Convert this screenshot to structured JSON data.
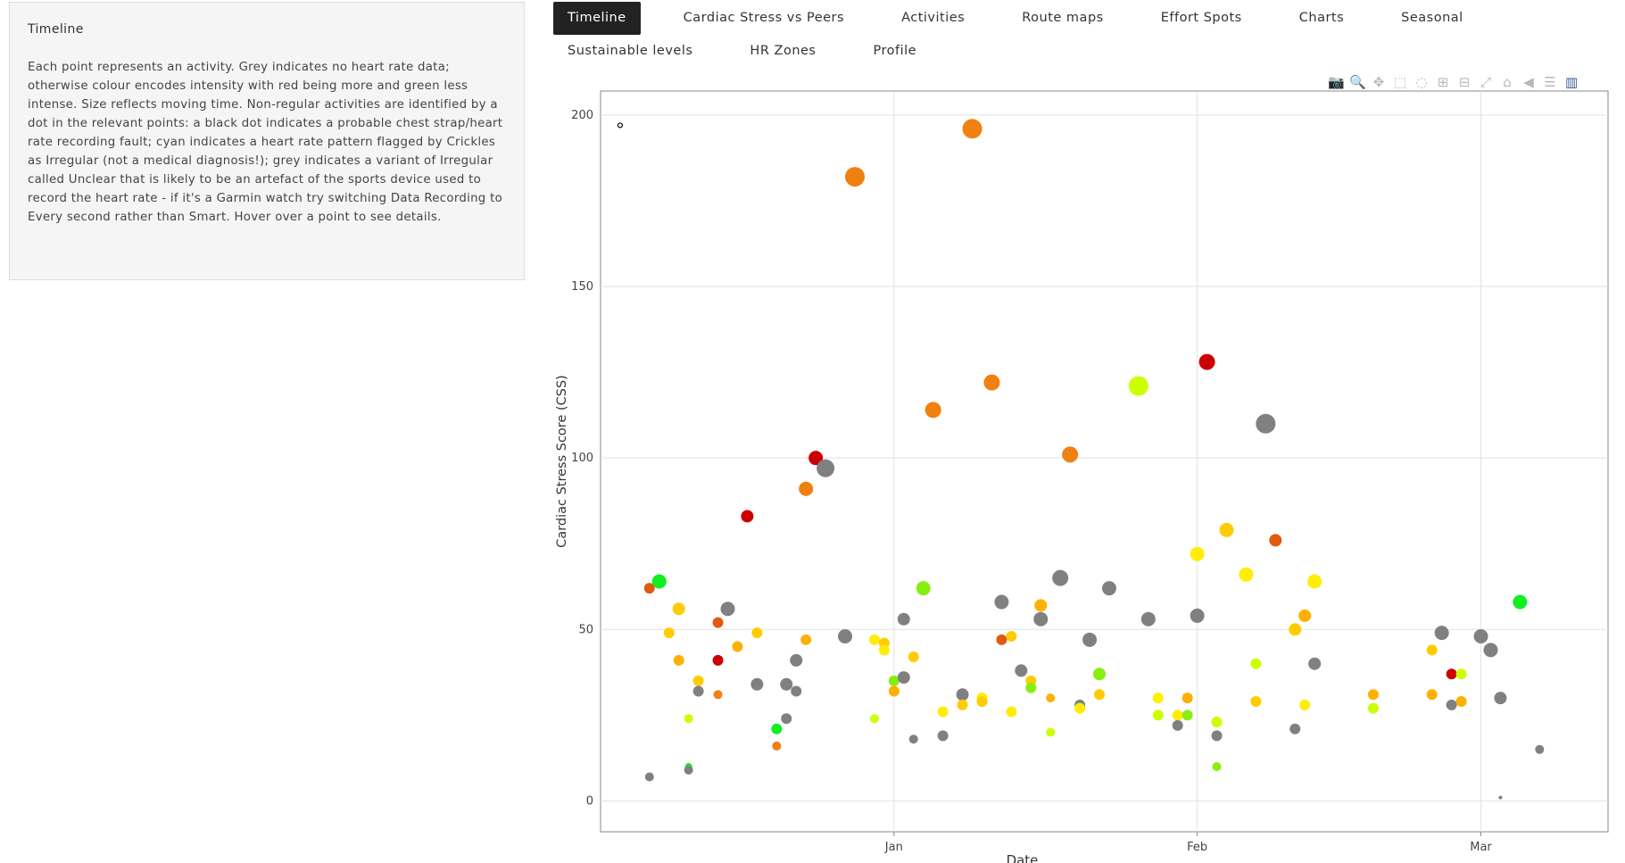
{
  "info": {
    "title": "Timeline",
    "text": "Each point represents an activity. Grey indicates no heart rate data; otherwise colour encodes intensity with red being more and green less intense. Size reflects moving time. Non-regular activities are identified by a dot in the relevant points: a black dot indicates a probable chest strap/heart rate recording fault; cyan indicates a heart rate pattern flagged by Crickles as Irregular (not a medical diagnosis!); grey indicates a variant of Irregular called Unclear that is likely to be an artefact of the sports device used to record the heart rate - if it's a Garmin watch try switching Data Recording to Every second rather than Smart. Hover over a point to see details."
  },
  "tabs": [
    {
      "label": "Timeline",
      "active": true
    },
    {
      "label": "Cardiac Stress vs Peers"
    },
    {
      "label": "Activities"
    },
    {
      "label": "Route maps"
    },
    {
      "label": "Effort Spots"
    },
    {
      "label": "Charts"
    },
    {
      "label": "Seasonal"
    },
    {
      "label": "Sustainable levels"
    },
    {
      "label": "HR Zones"
    },
    {
      "label": "Profile"
    }
  ],
  "modebar": [
    {
      "icon": "camera-icon",
      "glyph": "📷"
    },
    {
      "icon": "zoom-icon",
      "glyph": "🔍",
      "style": "hl"
    },
    {
      "icon": "pan-icon",
      "glyph": "✥"
    },
    {
      "icon": "box-select-icon",
      "glyph": "⬚"
    },
    {
      "icon": "lasso-select-icon",
      "glyph": "◌"
    },
    {
      "icon": "zoom-in-icon",
      "glyph": "⊞"
    },
    {
      "icon": "zoom-out-icon",
      "glyph": "⊟"
    },
    {
      "icon": "autoscale-icon",
      "glyph": "⤢"
    },
    {
      "icon": "reset-axes-icon",
      "glyph": "⌂"
    },
    {
      "icon": "spike-lines-icon",
      "glyph": "◀"
    },
    {
      "icon": "compare-data-icon",
      "glyph": "☰"
    },
    {
      "icon": "plotly-logo-icon",
      "glyph": "▥",
      "style": "on"
    }
  ],
  "chart_data": {
    "type": "scatter",
    "xlabel": "Date",
    "ylabel": "Cardiac Stress Score (CSS)",
    "ylim": [
      -9,
      207
    ],
    "xlim": [
      "2023-12-02",
      "2024-03-14"
    ],
    "xticks": [
      {
        "date": "2024-01-01",
        "label": "Jan"
      },
      {
        "date": "2024-02-01",
        "label": "Feb"
      },
      {
        "date": "2024-03-01",
        "label": "Mar"
      }
    ],
    "yticks": [
      0,
      50,
      100,
      150,
      200
    ],
    "grid": true,
    "colors": {
      "grey": "#808080",
      "red": "#cc0000",
      "red_orange": "#e05a10",
      "orange": "#f08010",
      "amber": "#ffb000",
      "yellow_orange": "#ffcc00",
      "yellow": "#ffee00",
      "yellow_green": "#ccff00",
      "lime": "#88ee11",
      "green": "#11ee22"
    },
    "points": [
      {
        "date": "2023-12-04",
        "y": 197,
        "c": "none",
        "r": 2,
        "flag": "chest-strap-fault"
      },
      {
        "date": "2023-12-07",
        "y": 62,
        "c": "red_orange",
        "r": 6
      },
      {
        "date": "2023-12-07",
        "y": 7,
        "c": "grey",
        "r": 5
      },
      {
        "date": "2023-12-08",
        "y": 64,
        "c": "green",
        "r": 8
      },
      {
        "date": "2023-12-09",
        "y": 49,
        "c": "yellow_orange",
        "r": 6
      },
      {
        "date": "2023-12-10",
        "y": 56,
        "c": "yellow_orange",
        "r": 7
      },
      {
        "date": "2023-12-10",
        "y": 41,
        "c": "amber",
        "r": 6
      },
      {
        "date": "2023-12-11",
        "y": 24,
        "c": "yellow_green",
        "r": 5
      },
      {
        "date": "2023-12-11",
        "y": 10,
        "c": "green",
        "r": 4
      },
      {
        "date": "2023-12-11",
        "y": 9,
        "c": "grey",
        "r": 5
      },
      {
        "date": "2023-12-12",
        "y": 35,
        "c": "yellow_orange",
        "r": 6
      },
      {
        "date": "2023-12-12",
        "y": 32,
        "c": "grey",
        "r": 6
      },
      {
        "date": "2023-12-14",
        "y": 52,
        "c": "red_orange",
        "r": 6
      },
      {
        "date": "2023-12-14",
        "y": 41,
        "c": "red",
        "r": 6
      },
      {
        "date": "2023-12-14",
        "y": 31,
        "c": "orange",
        "r": 5
      },
      {
        "date": "2023-12-15",
        "y": 56,
        "c": "grey",
        "r": 8
      },
      {
        "date": "2023-12-16",
        "y": 45,
        "c": "amber",
        "r": 6
      },
      {
        "date": "2023-12-17",
        "y": 83,
        "c": "red",
        "r": 7
      },
      {
        "date": "2023-12-18",
        "y": 49,
        "c": "yellow_orange",
        "r": 6
      },
      {
        "date": "2023-12-18",
        "y": 34,
        "c": "grey",
        "r": 7
      },
      {
        "date": "2023-12-20",
        "y": 21,
        "c": "green",
        "r": 6
      },
      {
        "date": "2023-12-20",
        "y": 16,
        "c": "orange",
        "r": 5
      },
      {
        "date": "2023-12-21",
        "y": 34,
        "c": "grey",
        "r": 7
      },
      {
        "date": "2023-12-21",
        "y": 24,
        "c": "grey",
        "r": 6
      },
      {
        "date": "2023-12-22",
        "y": 41,
        "c": "grey",
        "r": 7
      },
      {
        "date": "2023-12-22",
        "y": 32,
        "c": "grey",
        "r": 6
      },
      {
        "date": "2023-12-23",
        "y": 91,
        "c": "orange",
        "r": 8
      },
      {
        "date": "2023-12-23",
        "y": 47,
        "c": "amber",
        "r": 6
      },
      {
        "date": "2023-12-24",
        "y": 100,
        "c": "red",
        "r": 8
      },
      {
        "date": "2023-12-25",
        "y": 97,
        "c": "grey",
        "r": 10
      },
      {
        "date": "2023-12-27",
        "y": 48,
        "c": "grey",
        "r": 8
      },
      {
        "date": "2023-12-28",
        "y": 182,
        "c": "orange",
        "r": 11
      },
      {
        "date": "2023-12-30",
        "y": 47,
        "c": "yellow",
        "r": 6
      },
      {
        "date": "2023-12-30",
        "y": 24,
        "c": "yellow_green",
        "r": 5
      },
      {
        "date": "2023-12-31",
        "y": 46,
        "c": "yellow_orange",
        "r": 6
      },
      {
        "date": "2023-12-31",
        "y": 44,
        "c": "yellow",
        "r": 6
      },
      {
        "date": "2024-01-01",
        "y": 35,
        "c": "lime",
        "r": 6
      },
      {
        "date": "2024-01-01",
        "y": 32,
        "c": "amber",
        "r": 6
      },
      {
        "date": "2024-01-02",
        "y": 53,
        "c": "grey",
        "r": 7
      },
      {
        "date": "2024-01-02",
        "y": 36,
        "c": "grey",
        "r": 7
      },
      {
        "date": "2024-01-03",
        "y": 42,
        "c": "yellow_orange",
        "r": 6
      },
      {
        "date": "2024-01-03",
        "y": 18,
        "c": "grey",
        "r": 5
      },
      {
        "date": "2024-01-04",
        "y": 62,
        "c": "lime",
        "r": 8
      },
      {
        "date": "2024-01-05",
        "y": 114,
        "c": "orange",
        "r": 9
      },
      {
        "date": "2024-01-06",
        "y": 26,
        "c": "yellow",
        "r": 6
      },
      {
        "date": "2024-01-06",
        "y": 19,
        "c": "grey",
        "r": 6
      },
      {
        "date": "2024-01-08",
        "y": 31,
        "c": "grey",
        "r": 7
      },
      {
        "date": "2024-01-08",
        "y": 28,
        "c": "yellow_orange",
        "r": 6
      },
      {
        "date": "2024-01-09",
        "y": 196,
        "c": "orange",
        "r": 11
      },
      {
        "date": "2024-01-10",
        "y": 30,
        "c": "yellow",
        "r": 6
      },
      {
        "date": "2024-01-10",
        "y": 29,
        "c": "yellow_orange",
        "r": 6
      },
      {
        "date": "2024-01-11",
        "y": 122,
        "c": "orange",
        "r": 9
      },
      {
        "date": "2024-01-12",
        "y": 58,
        "c": "grey",
        "r": 8
      },
      {
        "date": "2024-01-12",
        "y": 47,
        "c": "red_orange",
        "r": 6
      },
      {
        "date": "2024-01-13",
        "y": 48,
        "c": "yellow_orange",
        "r": 6
      },
      {
        "date": "2024-01-13",
        "y": 26,
        "c": "yellow",
        "r": 6
      },
      {
        "date": "2024-01-14",
        "y": 38,
        "c": "grey",
        "r": 7
      },
      {
        "date": "2024-01-15",
        "y": 35,
        "c": "yellow_orange",
        "r": 6
      },
      {
        "date": "2024-01-15",
        "y": 33,
        "c": "lime",
        "r": 6
      },
      {
        "date": "2024-01-16",
        "y": 57,
        "c": "amber",
        "r": 7
      },
      {
        "date": "2024-01-16",
        "y": 53,
        "c": "grey",
        "r": 8
      },
      {
        "date": "2024-01-17",
        "y": 30,
        "c": "amber",
        "r": 5
      },
      {
        "date": "2024-01-17",
        "y": 20,
        "c": "yellow_green",
        "r": 5
      },
      {
        "date": "2024-01-18",
        "y": 65,
        "c": "grey",
        "r": 9
      },
      {
        "date": "2024-01-19",
        "y": 101,
        "c": "orange",
        "r": 9
      },
      {
        "date": "2024-01-20",
        "y": 28,
        "c": "grey",
        "r": 6
      },
      {
        "date": "2024-01-20",
        "y": 27,
        "c": "yellow",
        "r": 6
      },
      {
        "date": "2024-01-21",
        "y": 47,
        "c": "grey",
        "r": 8
      },
      {
        "date": "2024-01-22",
        "y": 37,
        "c": "lime",
        "r": 7
      },
      {
        "date": "2024-01-22",
        "y": 31,
        "c": "yellow_orange",
        "r": 6
      },
      {
        "date": "2024-01-23",
        "y": 62,
        "c": "grey",
        "r": 8
      },
      {
        "date": "2024-01-26",
        "y": 121,
        "c": "yellow_green",
        "r": 11
      },
      {
        "date": "2024-01-27",
        "y": 53,
        "c": "grey",
        "r": 8
      },
      {
        "date": "2024-01-28",
        "y": 30,
        "c": "yellow",
        "r": 6
      },
      {
        "date": "2024-01-28",
        "y": 25,
        "c": "yellow_green",
        "r": 6
      },
      {
        "date": "2024-01-30",
        "y": 25,
        "c": "yellow",
        "r": 6
      },
      {
        "date": "2024-01-30",
        "y": 22,
        "c": "grey",
        "r": 6
      },
      {
        "date": "2024-01-31",
        "y": 30,
        "c": "amber",
        "r": 6
      },
      {
        "date": "2024-01-31",
        "y": 25,
        "c": "lime",
        "r": 6
      },
      {
        "date": "2024-02-01",
        "y": 72,
        "c": "yellow",
        "r": 8
      },
      {
        "date": "2024-02-01",
        "y": 54,
        "c": "grey",
        "r": 8
      },
      {
        "date": "2024-02-02",
        "y": 128,
        "c": "red",
        "r": 9
      },
      {
        "date": "2024-02-03",
        "y": 23,
        "c": "yellow_green",
        "r": 6
      },
      {
        "date": "2024-02-03",
        "y": 19,
        "c": "grey",
        "r": 6
      },
      {
        "date": "2024-02-03",
        "y": 10,
        "c": "lime",
        "r": 5
      },
      {
        "date": "2024-02-04",
        "y": 79,
        "c": "yellow_orange",
        "r": 8
      },
      {
        "date": "2024-02-06",
        "y": 66,
        "c": "yellow",
        "r": 8
      },
      {
        "date": "2024-02-07",
        "y": 40,
        "c": "yellow_green",
        "r": 6
      },
      {
        "date": "2024-02-07",
        "y": 29,
        "c": "yellow_orange",
        "r": 6
      },
      {
        "date": "2024-02-08",
        "y": 110,
        "c": "grey",
        "r": 11
      },
      {
        "date": "2024-02-09",
        "y": 76,
        "c": "red_orange",
        "r": 7
      },
      {
        "date": "2024-02-11",
        "y": 50,
        "c": "yellow_orange",
        "r": 7
      },
      {
        "date": "2024-02-11",
        "y": 21,
        "c": "grey",
        "r": 6
      },
      {
        "date": "2024-02-12",
        "y": 54,
        "c": "amber",
        "r": 7
      },
      {
        "date": "2024-02-12",
        "y": 28,
        "c": "yellow",
        "r": 6
      },
      {
        "date": "2024-02-13",
        "y": 64,
        "c": "yellow",
        "r": 8
      },
      {
        "date": "2024-02-13",
        "y": 40,
        "c": "grey",
        "r": 7
      },
      {
        "date": "2024-02-19",
        "y": 31,
        "c": "amber",
        "r": 6
      },
      {
        "date": "2024-02-19",
        "y": 27,
        "c": "yellow_green",
        "r": 6
      },
      {
        "date": "2024-02-25",
        "y": 44,
        "c": "yellow_orange",
        "r": 6
      },
      {
        "date": "2024-02-25",
        "y": 31,
        "c": "amber",
        "r": 6
      },
      {
        "date": "2024-02-26",
        "y": 49,
        "c": "grey",
        "r": 8
      },
      {
        "date": "2024-02-27",
        "y": 37,
        "c": "red",
        "r": 6
      },
      {
        "date": "2024-02-27",
        "y": 28,
        "c": "grey",
        "r": 6
      },
      {
        "date": "2024-02-28",
        "y": 37,
        "c": "yellow_green",
        "r": 6
      },
      {
        "date": "2024-02-28",
        "y": 29,
        "c": "amber",
        "r": 6
      },
      {
        "date": "2024-03-01",
        "y": 48,
        "c": "grey",
        "r": 8
      },
      {
        "date": "2024-03-02",
        "y": 44,
        "c": "grey",
        "r": 8
      },
      {
        "date": "2024-03-03",
        "y": 30,
        "c": "grey",
        "r": 7
      },
      {
        "date": "2024-03-03",
        "y": 1,
        "c": "grey",
        "r": 2
      },
      {
        "date": "2024-03-05",
        "y": 58,
        "c": "green",
        "r": 8
      },
      {
        "date": "2024-03-07",
        "y": 15,
        "c": "grey",
        "r": 5
      }
    ]
  }
}
